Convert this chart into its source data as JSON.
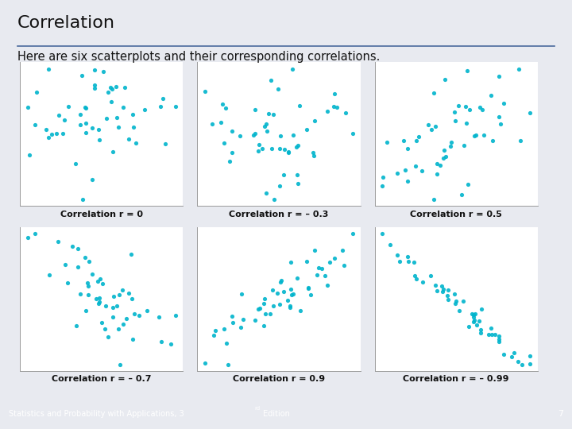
{
  "title": "Correlation",
  "subtitle": "Here are six scatterplots and their corresponding correlations.",
  "footer": "Statistics and Probability with Applications, 3ʳᵈ Edition",
  "page_number": "7",
  "background_color": "#e8eaf0",
  "footer_bg": "#1e3a6e",
  "footer_text_color": "#ffffff",
  "plot_bg": "#ffffff",
  "dot_color": "#00b4cc",
  "title_color": "#111111",
  "subtitle_color": "#111111",
  "label_fontsize": 8,
  "title_fontsize": 16,
  "subtitle_fontsize": 10.5,
  "correlations": [
    0,
    -0.3,
    0.5,
    -0.7,
    0.9,
    -0.99
  ],
  "labels": [
    "Correlation r = 0",
    "Correlation r = – 0.3",
    "Correlation r = 0.5",
    "Correlation r = – 0.7",
    "Correlation r = 0.9",
    "Correlation r = – 0.99"
  ],
  "n_points": 50,
  "dot_size": 14,
  "dot_alpha": 0.9,
  "seeds": [
    42,
    7,
    13,
    99,
    21,
    55
  ]
}
